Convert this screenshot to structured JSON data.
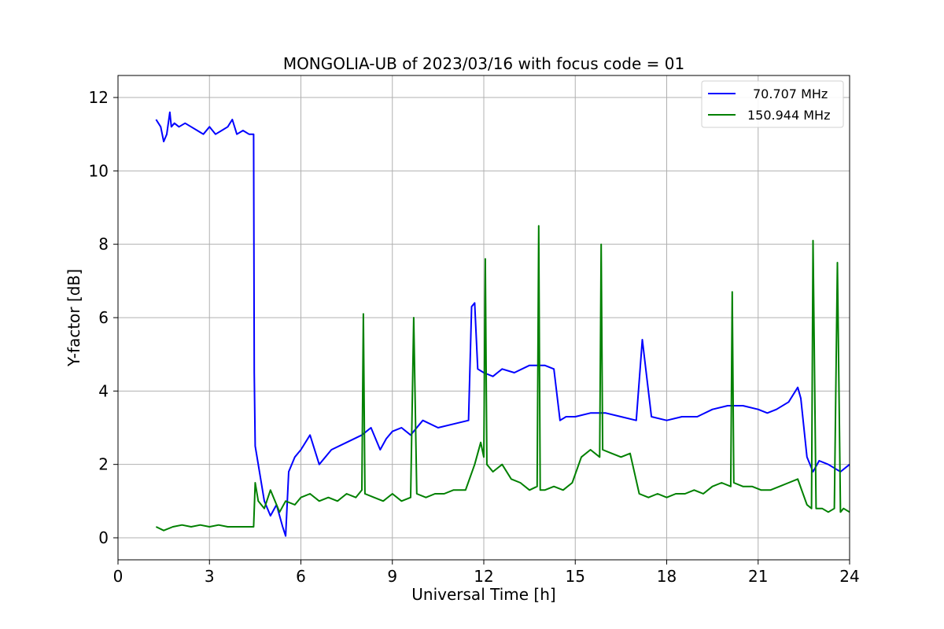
{
  "chart_data": {
    "type": "line",
    "title": "MONGOLIA-UB of 2023/03/16 with focus code = 01",
    "xlabel": "Universal Time [h]",
    "ylabel": "Y-factor [dB]",
    "xlim": [
      0,
      24
    ],
    "ylim": [
      -0.6,
      12.6
    ],
    "xticks": [
      0,
      3,
      6,
      9,
      12,
      15,
      18,
      21,
      24
    ],
    "yticks": [
      0,
      2,
      4,
      6,
      8,
      10,
      12
    ],
    "grid": true,
    "legend_position": "top-right",
    "series": [
      {
        "name": "70.707 MHz",
        "color": "#0000ff",
        "x": [
          1.25,
          1.4,
          1.5,
          1.6,
          1.7,
          1.75,
          1.85,
          2.0,
          2.2,
          2.4,
          2.6,
          2.8,
          3.0,
          3.2,
          3.4,
          3.6,
          3.75,
          3.9,
          4.1,
          4.3,
          4.45,
          4.47,
          4.5,
          4.6,
          4.8,
          5.0,
          5.2,
          5.4,
          5.5,
          5.6,
          5.8,
          6.0,
          6.3,
          6.6,
          7.0,
          7.5,
          8.0,
          8.3,
          8.6,
          8.8,
          9.0,
          9.3,
          9.6,
          10.0,
          10.5,
          11.0,
          11.5,
          11.6,
          11.7,
          11.8,
          12.0,
          12.3,
          12.6,
          13.0,
          13.5,
          14.0,
          14.3,
          14.5,
          14.7,
          15.0,
          15.5,
          16.0,
          16.5,
          17.0,
          17.2,
          17.5,
          18.0,
          18.5,
          19.0,
          19.5,
          20.0,
          20.5,
          21.0,
          21.3,
          21.6,
          22.0,
          22.3,
          22.4,
          22.6,
          22.8,
          23.0,
          23.3,
          23.5,
          23.7,
          24.0
        ],
        "y": [
          11.4,
          11.2,
          10.8,
          11.0,
          11.6,
          11.2,
          11.3,
          11.2,
          11.3,
          11.2,
          11.1,
          11.0,
          11.2,
          11.0,
          11.1,
          11.2,
          11.4,
          11.0,
          11.1,
          11.0,
          11.0,
          4.5,
          2.5,
          2.0,
          1.0,
          0.6,
          0.9,
          0.3,
          0.05,
          1.8,
          2.2,
          2.4,
          2.8,
          2.0,
          2.4,
          2.6,
          2.8,
          3.0,
          2.4,
          2.7,
          2.9,
          3.0,
          2.8,
          3.2,
          3.0,
          3.1,
          3.2,
          6.3,
          6.4,
          4.6,
          4.5,
          4.4,
          4.6,
          4.5,
          4.7,
          4.7,
          4.6,
          3.2,
          3.3,
          3.3,
          3.4,
          3.4,
          3.3,
          3.2,
          5.4,
          3.3,
          3.2,
          3.3,
          3.3,
          3.5,
          3.6,
          3.6,
          3.5,
          3.4,
          3.5,
          3.7,
          4.1,
          3.8,
          2.2,
          1.8,
          2.1,
          2.0,
          1.9,
          1.8,
          2.0
        ]
      },
      {
        "name": "150.944 MHz",
        "color": "#008000",
        "x": [
          1.25,
          1.5,
          1.8,
          2.1,
          2.4,
          2.7,
          3.0,
          3.3,
          3.6,
          3.9,
          4.2,
          4.45,
          4.5,
          4.6,
          4.8,
          5.0,
          5.3,
          5.5,
          5.8,
          6.0,
          6.3,
          6.6,
          6.9,
          7.2,
          7.5,
          7.8,
          8.0,
          8.05,
          8.1,
          8.4,
          8.7,
          9.0,
          9.3,
          9.6,
          9.7,
          9.8,
          10.1,
          10.4,
          10.7,
          11.0,
          11.4,
          11.7,
          11.9,
          12.0,
          12.05,
          12.1,
          12.3,
          12.6,
          12.9,
          13.2,
          13.5,
          13.75,
          13.8,
          13.85,
          14.0,
          14.3,
          14.6,
          14.9,
          15.2,
          15.5,
          15.8,
          15.85,
          15.9,
          16.2,
          16.5,
          16.8,
          17.1,
          17.4,
          17.7,
          18.0,
          18.3,
          18.6,
          18.9,
          19.2,
          19.5,
          19.8,
          20.1,
          20.15,
          20.2,
          20.5,
          20.8,
          21.1,
          21.4,
          21.7,
          22.0,
          22.3,
          22.6,
          22.75,
          22.8,
          22.9,
          23.1,
          23.3,
          23.5,
          23.6,
          23.7,
          23.8,
          24.0
        ],
        "y": [
          0.3,
          0.2,
          0.3,
          0.35,
          0.3,
          0.35,
          0.3,
          0.35,
          0.3,
          0.3,
          0.3,
          0.3,
          1.5,
          1.0,
          0.8,
          1.3,
          0.7,
          1.0,
          0.9,
          1.1,
          1.2,
          1.0,
          1.1,
          1.0,
          1.2,
          1.1,
          1.3,
          6.1,
          1.2,
          1.1,
          1.0,
          1.2,
          1.0,
          1.1,
          6.0,
          1.2,
          1.1,
          1.2,
          1.2,
          1.3,
          1.3,
          2.0,
          2.6,
          2.2,
          7.6,
          2.0,
          1.8,
          2.0,
          1.6,
          1.5,
          1.3,
          1.4,
          8.5,
          1.3,
          1.3,
          1.4,
          1.3,
          1.5,
          2.2,
          2.4,
          2.2,
          8.0,
          2.4,
          2.3,
          2.2,
          2.3,
          1.2,
          1.1,
          1.2,
          1.1,
          1.2,
          1.2,
          1.3,
          1.2,
          1.4,
          1.5,
          1.4,
          6.7,
          1.5,
          1.4,
          1.4,
          1.3,
          1.3,
          1.4,
          1.5,
          1.6,
          0.9,
          0.8,
          8.1,
          0.8,
          0.8,
          0.7,
          0.8,
          7.5,
          0.7,
          0.8,
          0.7
        ]
      }
    ]
  }
}
